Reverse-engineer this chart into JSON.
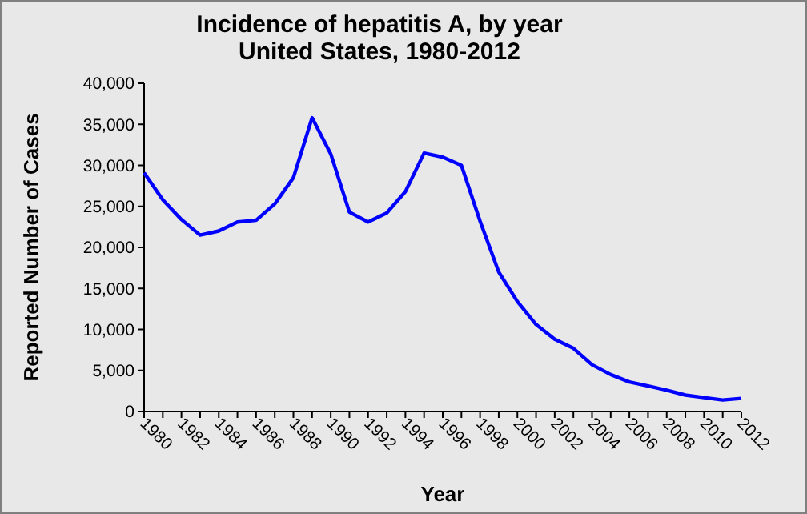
{
  "chart_data": {
    "type": "line",
    "title": "Incidence of hepatitis A, by year\nUnited States, 1980-2012",
    "xlabel": "Year",
    "ylabel": "Reported Number of Cases",
    "categories": [
      "1980",
      null,
      "1982",
      null,
      "1984",
      null,
      "1986",
      null,
      "1988",
      null,
      "1990",
      null,
      "1992",
      null,
      "1994",
      null,
      "1996",
      null,
      "1998",
      null,
      "2000",
      null,
      "2002",
      null,
      "2004",
      null,
      "2006",
      null,
      "2008",
      null,
      "2010",
      null,
      "2012"
    ],
    "series": [
      {
        "color": "#0000ff",
        "values": [
          29100,
          25800,
          23400,
          21500,
          22000,
          23100,
          23300,
          25300,
          28500,
          35800,
          31400,
          24300,
          23100,
          24200,
          26800,
          31500,
          31000,
          30000,
          23200,
          17000,
          13400,
          10600,
          8800,
          7700,
          5700,
          4500,
          3600,
          3100,
          2600,
          2000,
          1700,
          1400,
          1600
        ]
      }
    ],
    "ylim": [
      0,
      40000
    ],
    "yticks": [
      {
        "value": 0,
        "label": "0"
      },
      {
        "value": 5000,
        "label": "5,000"
      },
      {
        "value": 10000,
        "label": "10,000"
      },
      {
        "value": 15000,
        "label": "15,000"
      },
      {
        "value": 20000,
        "label": "20,000"
      },
      {
        "value": 25000,
        "label": "25,000"
      },
      {
        "value": 30000,
        "label": "30,000"
      },
      {
        "value": 35000,
        "label": "35,000"
      },
      {
        "value": 40000,
        "label": "40,000"
      }
    ],
    "marker": "none",
    "line_style": "solid"
  }
}
